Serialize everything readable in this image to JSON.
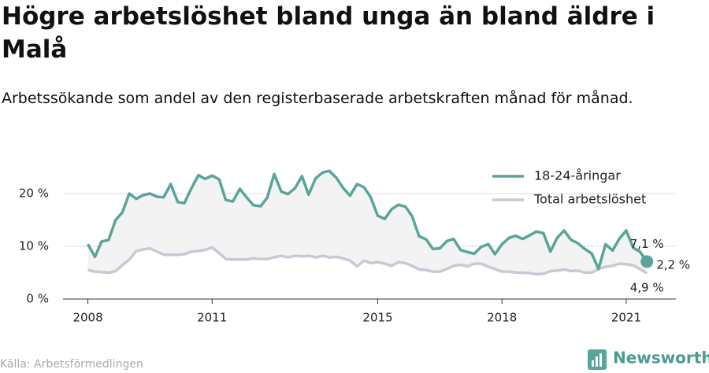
{
  "chart_data": {
    "type": "line",
    "title": "Högre arbetslöshet bland unga än bland äldre i Malå",
    "subtitle": "Arbetssökande som andel av den registerbaserade arbetskraften månad för månad.",
    "source": "Källa: Arbetsförmedlingen",
    "brand": "Newsworthy",
    "x": [
      2008,
      2008.17,
      2008.33,
      2008.5,
      2008.67,
      2008.83,
      2009,
      2009.17,
      2009.33,
      2009.5,
      2009.67,
      2009.83,
      2010,
      2010.17,
      2010.33,
      2010.5,
      2010.67,
      2010.83,
      2011,
      2011.17,
      2011.33,
      2011.5,
      2011.67,
      2011.83,
      2012,
      2012.17,
      2012.33,
      2012.5,
      2012.67,
      2012.83,
      2013,
      2013.17,
      2013.33,
      2013.5,
      2013.67,
      2013.83,
      2014,
      2014.17,
      2014.33,
      2014.5,
      2014.67,
      2014.83,
      2015,
      2015.17,
      2015.33,
      2015.5,
      2015.67,
      2015.83,
      2016,
      2016.17,
      2016.33,
      2016.5,
      2016.67,
      2016.83,
      2017,
      2017.17,
      2017.33,
      2017.5,
      2017.67,
      2017.83,
      2018,
      2018.17,
      2018.33,
      2018.5,
      2018.67,
      2018.83,
      2019,
      2019.17,
      2019.33,
      2019.5,
      2019.67,
      2019.83,
      2020,
      2020.17,
      2020.33,
      2020.5,
      2020.67,
      2020.83,
      2021,
      2021.17,
      2021.33,
      2021.5
    ],
    "series": [
      {
        "name": "18-24-åringar",
        "color": "#5aa59a",
        "values": [
          10.4,
          8.0,
          10.9,
          11.2,
          15.0,
          16.4,
          20.0,
          19.0,
          19.7,
          20.0,
          19.4,
          19.3,
          21.8,
          18.4,
          18.2,
          21.0,
          23.5,
          22.8,
          23.4,
          22.7,
          18.8,
          18.5,
          20.9,
          19.3,
          17.8,
          17.6,
          19.2,
          23.7,
          20.4,
          19.9,
          21.0,
          23.3,
          19.8,
          22.9,
          24.0,
          24.3,
          23.0,
          21.0,
          19.6,
          21.8,
          21.2,
          19.3,
          15.8,
          15.2,
          17.0,
          17.9,
          17.5,
          15.7,
          11.9,
          11.3,
          9.5,
          9.6,
          11.0,
          11.4,
          9.3,
          8.9,
          8.6,
          9.9,
          10.4,
          8.5,
          10.4,
          11.6,
          12.0,
          11.4,
          12.1,
          12.8,
          12.5,
          9.0,
          11.6,
          13.0,
          11.2,
          10.6,
          9.5,
          8.6,
          5.7,
          10.4,
          9.2,
          11.4,
          13.0,
          9.7,
          9.0,
          7.1
        ]
      },
      {
        "name": "Total arbetslöshet",
        "color": "#c9c8d4",
        "values": [
          5.5,
          5.2,
          5.1,
          5.0,
          5.3,
          6.4,
          7.5,
          9.1,
          9.4,
          9.6,
          9.0,
          8.4,
          8.4,
          8.4,
          8.5,
          9.0,
          9.1,
          9.3,
          9.8,
          8.7,
          7.6,
          7.5,
          7.5,
          7.5,
          7.7,
          7.6,
          7.6,
          7.9,
          8.2,
          7.9,
          8.2,
          8.1,
          8.2,
          7.9,
          8.2,
          7.9,
          8.0,
          7.7,
          7.3,
          6.2,
          7.3,
          6.8,
          7.0,
          6.7,
          6.3,
          7.0,
          6.8,
          6.3,
          5.6,
          5.5,
          5.2,
          5.2,
          5.7,
          6.3,
          6.5,
          6.2,
          6.7,
          6.7,
          6.1,
          5.7,
          5.2,
          5.2,
          5.0,
          5.0,
          4.9,
          4.7,
          4.8,
          5.3,
          5.4,
          5.6,
          5.3,
          5.4,
          5.0,
          5.0,
          5.7,
          6.1,
          6.3,
          6.7,
          6.6,
          6.4,
          5.7,
          4.9
        ]
      }
    ],
    "annotations": [
      "7,1 %",
      "2,2 %",
      "4,9 %"
    ],
    "xlim": [
      2007.4,
      2022.2
    ],
    "xticks": [
      2008,
      2011,
      2015,
      2018,
      2021
    ],
    "ylim": [
      0,
      25
    ],
    "yticks": [
      {
        "value": 0,
        "label": "0 %"
      },
      {
        "value": 10,
        "label": "10 %"
      },
      {
        "value": 20,
        "label": "20 %"
      }
    ],
    "grid": true,
    "legend": "top-right"
  }
}
